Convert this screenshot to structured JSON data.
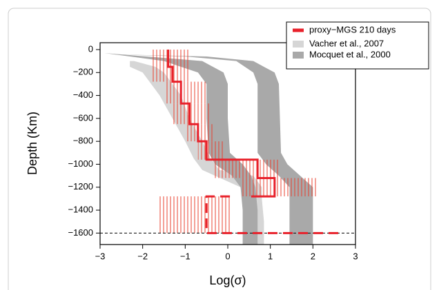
{
  "chart_data": {
    "type": "profile",
    "xlabel": "Log(σ)",
    "ylabel": "Depth (Km)",
    "xlim": [
      -3,
      3
    ],
    "ylim": [
      -1700,
      60
    ],
    "xticks": [
      {
        "value": -3,
        "label": "−3"
      },
      {
        "value": -2,
        "label": "−2"
      },
      {
        "value": -1,
        "label": "−1"
      },
      0,
      1,
      2,
      3
    ],
    "yticks": [
      0,
      {
        "value": -200,
        "label": "−200"
      },
      {
        "value": -400,
        "label": "−400"
      },
      {
        "value": -600,
        "label": "−600"
      },
      {
        "value": -800,
        "label": "−800"
      },
      {
        "value": -1000,
        "label": "−1000"
      },
      {
        "value": -1200,
        "label": "−1200"
      },
      {
        "value": -1400,
        "label": "−1400"
      },
      {
        "value": -1600,
        "label": "−1600"
      }
    ],
    "hline": -1600,
    "bands": [
      {
        "name": "Vacher et al., 2007",
        "color": "#d6d6d6",
        "polygons": [
          {
            "depth": [
              -100,
              -150,
              -200,
              -400,
              -600,
              -800,
              -950,
              -1050,
              -1100,
              -1200,
              -1300,
              -1500,
              -1700
            ],
            "left": [
              -2.3,
              -2.3,
              -2.0,
              -1.6,
              -1.3,
              -1.0,
              -0.8,
              -0.6,
              -0.3,
              0.3,
              0.5,
              0.6,
              0.6
            ],
            "right": [
              -2.2,
              -1.7,
              -1.5,
              -1.1,
              -0.9,
              -0.6,
              -0.4,
              -0.2,
              0.6,
              0.8,
              0.8,
              0.85,
              0.85
            ]
          }
        ]
      },
      {
        "name": "Mocquet et al., 2000",
        "color": "#a9a9a9",
        "polygons": [
          {
            "depth": [
              -30,
              -100,
              -200,
              -300,
              -600,
              -900,
              -1000,
              -1100,
              -1200,
              -1400,
              -1600,
              -1700
            ],
            "left": [
              -2.9,
              -1.5,
              -0.7,
              -0.5,
              -0.5,
              -0.45,
              -0.3,
              0.1,
              0.3,
              0.35,
              0.35,
              0.35
            ],
            "right": [
              -2.9,
              -0.6,
              -0.1,
              0.0,
              0.0,
              0.05,
              0.35,
              0.55,
              0.65,
              0.7,
              0.7,
              0.7
            ]
          },
          {
            "depth": [
              -40,
              -60,
              -100,
              -200,
              -300,
              -900,
              -1000,
              -1100,
              -1200,
              -1600,
              -1700
            ],
            "left": [
              -2.9,
              -1.0,
              0.2,
              0.6,
              0.7,
              0.7,
              0.9,
              1.2,
              1.45,
              1.45,
              1.45
            ],
            "right": [
              -2.9,
              -0.5,
              0.6,
              1.1,
              1.2,
              1.25,
              1.4,
              1.7,
              2.0,
              2.0,
              2.0
            ]
          }
        ]
      }
    ],
    "ranges": [
      {
        "top": 0,
        "bottom": -150,
        "lo": -1.8,
        "hi": -0.9
      },
      {
        "top": -150,
        "bottom": -280,
        "lo": -1.8,
        "hi": -0.9
      },
      {
        "top": -280,
        "bottom": -470,
        "lo": -1.5,
        "hi": -0.5
      },
      {
        "top": -470,
        "bottom": -650,
        "lo": -1.3,
        "hi": -0.4
      },
      {
        "top": -650,
        "bottom": -800,
        "lo": -1.0,
        "hi": -0.3
      },
      {
        "top": -800,
        "bottom": -960,
        "lo": -0.7,
        "hi": -0.1
      },
      {
        "top": -960,
        "bottom": -1120,
        "lo": -0.3,
        "hi": 1.2
      },
      {
        "top": -1120,
        "bottom": -1280,
        "lo": 0.3,
        "hi": 2.1
      },
      {
        "top": -1280,
        "bottom": -1600,
        "lo": -1.6,
        "hi": 0.1
      }
    ],
    "range_color": "#e8402f",
    "series": [
      {
        "name": "proxy−MGS 210 days",
        "color": "#e8202a",
        "dashed": false,
        "x": [
          -1.4,
          -1.4,
          -1.3,
          -1.3,
          -1.1,
          -1.1,
          -0.9,
          -0.9,
          -0.7,
          -0.7,
          -0.5,
          -0.5,
          0.7,
          0.7,
          1.1,
          1.1,
          0.55
        ],
        "y": [
          0,
          -150,
          -150,
          -280,
          -280,
          -470,
          -470,
          -650,
          -650,
          -800,
          -800,
          -960,
          -960,
          -1120,
          -1120,
          -1280,
          -1280
        ]
      },
      {
        "color": "#e8202a",
        "dashed": true,
        "x": [
          0.05,
          -0.5,
          -0.5,
          2.7
        ],
        "y": [
          -1280,
          -1280,
          -1600,
          -1600
        ]
      }
    ]
  }
}
